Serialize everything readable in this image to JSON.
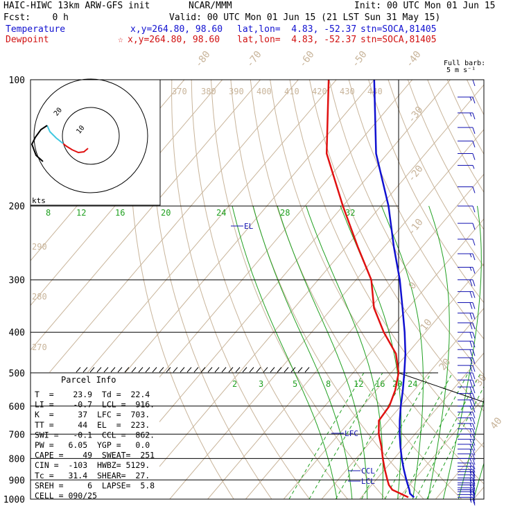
{
  "header": {
    "model": "HAIC-HIWC 13km ARW-GFS init",
    "org": "NCAR/MMM",
    "init": "Init: 00 UTC Mon 01 Jun 15",
    "fcst": "Fcst:    0 h",
    "valid": "Valid: 00 UTC Mon 01 Jun 15 (21 LST Sun 31 May 15)",
    "temperature": {
      "label": "Temperature",
      "xy": "x,y=264.80, 98.60",
      "latlon": "lat,lon=  4.83, -52.37",
      "stn": "stn=SOCA,81405"
    },
    "dewpoint": {
      "label": "Dewpoint",
      "marker": "☆",
      "xy": "x,y=264.80, 98.60",
      "latlon": "lat,lon=  4.83, -52.37",
      "stn": "stn=SOCA,81405"
    }
  },
  "barb_legend": {
    "line1": "Full barb:",
    "line2": "5 m s⁻¹"
  },
  "hodograph": {
    "units": "kts",
    "ring_label_outer": "20",
    "ring_label_inner": "10"
  },
  "parcel_info": {
    "title": "Parcel Info",
    "rows": [
      "T  =    23.9  Td =  22.4",
      "LI =    -0.7  LCL =  916.",
      "K  =     37  LFC =  703.",
      "TT =     44  EL  =  223.",
      "SWI =   -0.1  CCL =  862.",
      "PW =   6.05  YGP =   0.0",
      "CAPE =    49  SWEAT=  251",
      "CIN =  -103  HWBZ= 5129.",
      "Tc =   31.4  SHEAR=  27.",
      "SREH =     6  LAPSE=  5.8",
      "CELL = 090/25"
    ]
  },
  "levels": {
    "EL": "EL",
    "LFC": "LFC",
    "CCL": "CCL",
    "LCL": "LCL"
  },
  "colors": {
    "temperature": "#1010d0",
    "dewpoint": "#e01010",
    "isotherm": "#c8b49a",
    "mixing": "#20a020",
    "wind": "#1010b0"
  },
  "chart_data": {
    "type": "line",
    "title": "",
    "ylabel": "",
    "y_scale": "log-pressure",
    "ylim": [
      1000,
      100
    ],
    "pressure_ticks": [
      100,
      200,
      300,
      400,
      500,
      600,
      700,
      800,
      900,
      1000
    ],
    "isotherm_labels": [
      "-80",
      "-70",
      "-60",
      "-50",
      "-40",
      "-30",
      "-20",
      "-10",
      "0",
      "10",
      "20",
      "30",
      "40"
    ],
    "theta_labels_top": [
      "370",
      "380",
      "390",
      "400",
      "410",
      "420",
      "430",
      "440"
    ],
    "theta_labels_left": [
      "290",
      "280",
      "270"
    ],
    "mixing_ratio_upper": [
      "8",
      "12",
      "16",
      "20",
      "24",
      "28",
      "32"
    ],
    "mixing_ratio_lower": [
      "2",
      "3",
      "5",
      "8",
      "12",
      "16",
      "20",
      "24"
    ],
    "series": [
      {
        "name": "Temperature",
        "p": [
          990,
          970,
          950,
          925,
          900,
          850,
          800,
          750,
          700,
          650,
          600,
          550,
          500,
          450,
          400,
          350,
          300,
          250,
          200,
          150,
          100
        ],
        "t": [
          23.9,
          22.0,
          21.0,
          19.5,
          18.0,
          15.0,
          12.0,
          9.0,
          6.0,
          3.0,
          0.0,
          -3.0,
          -6.5,
          -10.5,
          -15.5,
          -21.5,
          -28.5,
          -37.5,
          -48.0,
          -63.0,
          -80.0
        ]
      },
      {
        "name": "Dewpoint",
        "p": [
          990,
          970,
          950,
          925,
          900,
          850,
          800,
          750,
          700,
          650,
          600,
          550,
          500,
          450,
          400,
          350,
          300,
          250,
          200,
          150,
          100
        ],
        "t": [
          22.4,
          19.5,
          16.5,
          14.5,
          13.0,
          10.0,
          7.0,
          4.0,
          0.5,
          -2.5,
          -3.0,
          -5.0,
          -8.0,
          -13.0,
          -21.0,
          -29.0,
          -36.0,
          -47.0,
          -60.0,
          -76.0,
          -92.0
        ]
      }
    ],
    "wind_barbs": {
      "p": [
        1000,
        990,
        975,
        960,
        950,
        940,
        925,
        915,
        900,
        890,
        875,
        860,
        850,
        835,
        820,
        800,
        780,
        760,
        740,
        720,
        700,
        680,
        660,
        640,
        620,
        600,
        580,
        560,
        540,
        520,
        500,
        480,
        460,
        440,
        420,
        400,
        380,
        360,
        340,
        320,
        300,
        280,
        260,
        240,
        220,
        200,
        180,
        160,
        150,
        140,
        130,
        120,
        110,
        100
      ],
      "speed_ms": [
        8,
        9,
        9,
        9,
        9,
        9,
        8,
        8,
        8,
        8,
        8,
        8,
        8,
        8,
        8,
        8,
        8,
        8,
        8,
        8,
        9,
        9,
        9,
        9,
        9,
        9,
        10,
        10,
        10,
        10,
        10,
        10,
        10,
        10,
        10,
        10,
        10,
        10,
        10,
        10,
        10,
        8,
        8,
        7,
        7,
        6,
        5,
        3,
        5,
        5,
        7,
        8,
        8,
        5
      ],
      "dir_deg": [
        100,
        100,
        100,
        95,
        95,
        95,
        90,
        90,
        90,
        90,
        90,
        90,
        90,
        90,
        90,
        90,
        90,
        90,
        90,
        90,
        90,
        90,
        90,
        90,
        90,
        90,
        90,
        90,
        90,
        90,
        90,
        90,
        90,
        90,
        90,
        90,
        90,
        90,
        90,
        90,
        90,
        90,
        90,
        90,
        90,
        90,
        90,
        100,
        110,
        120,
        90,
        90,
        90,
        90
      ]
    }
  }
}
